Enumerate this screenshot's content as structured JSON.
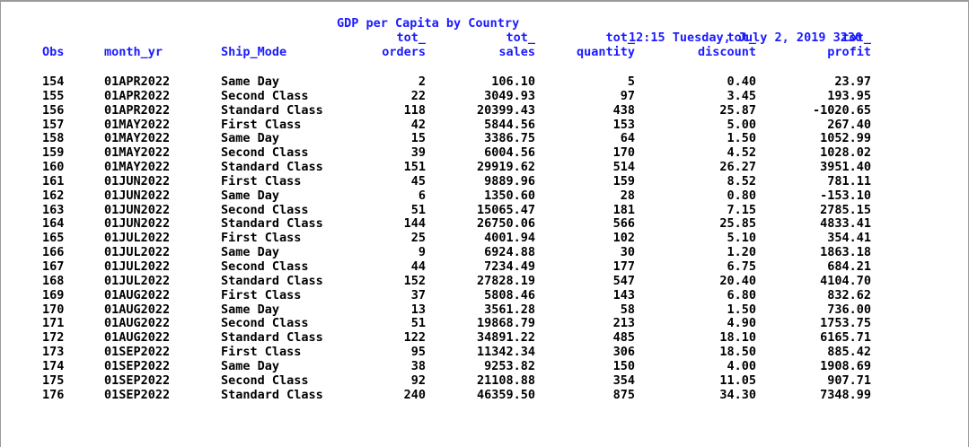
{
  "header": {
    "title": "GDP per Capita by Country",
    "timestamp": "12:15 Tuesday, July 2, 2019 3230"
  },
  "columns": {
    "obs": "Obs",
    "month_yr": "month_yr",
    "ship_mode": "Ship_Mode",
    "tot_orders": "tot_\norders",
    "tot_sales": "tot_\nsales",
    "tot_quantity": "tot_\nquantity",
    "tot_discount": "tot_\ndiscount",
    "tot_profit": "tot_\nprofit"
  },
  "rows": [
    {
      "obs": "154",
      "month_yr": "01APR2022",
      "ship_mode": "Same Day",
      "orders": "2",
      "sales": "106.10",
      "quantity": "5",
      "discount": "0.40",
      "profit": "23.97"
    },
    {
      "obs": "155",
      "month_yr": "01APR2022",
      "ship_mode": "Second Class",
      "orders": "22",
      "sales": "3049.93",
      "quantity": "97",
      "discount": "3.45",
      "profit": "193.95"
    },
    {
      "obs": "156",
      "month_yr": "01APR2022",
      "ship_mode": "Standard Class",
      "orders": "118",
      "sales": "20399.43",
      "quantity": "438",
      "discount": "25.87",
      "profit": "-1020.65"
    },
    {
      "obs": "157",
      "month_yr": "01MAY2022",
      "ship_mode": "First Class",
      "orders": "42",
      "sales": "5844.56",
      "quantity": "153",
      "discount": "5.00",
      "profit": "267.40"
    },
    {
      "obs": "158",
      "month_yr": "01MAY2022",
      "ship_mode": "Same Day",
      "orders": "15",
      "sales": "3386.75",
      "quantity": "64",
      "discount": "1.50",
      "profit": "1052.99"
    },
    {
      "obs": "159",
      "month_yr": "01MAY2022",
      "ship_mode": "Second Class",
      "orders": "39",
      "sales": "6004.56",
      "quantity": "170",
      "discount": "4.52",
      "profit": "1028.02"
    },
    {
      "obs": "160",
      "month_yr": "01MAY2022",
      "ship_mode": "Standard Class",
      "orders": "151",
      "sales": "29919.62",
      "quantity": "514",
      "discount": "26.27",
      "profit": "3951.40"
    },
    {
      "obs": "161",
      "month_yr": "01JUN2022",
      "ship_mode": "First Class",
      "orders": "45",
      "sales": "9889.96",
      "quantity": "159",
      "discount": "8.52",
      "profit": "781.11"
    },
    {
      "obs": "162",
      "month_yr": "01JUN2022",
      "ship_mode": "Same Day",
      "orders": "6",
      "sales": "1350.60",
      "quantity": "28",
      "discount": "0.80",
      "profit": "-153.10"
    },
    {
      "obs": "163",
      "month_yr": "01JUN2022",
      "ship_mode": "Second Class",
      "orders": "51",
      "sales": "15065.47",
      "quantity": "181",
      "discount": "7.15",
      "profit": "2785.15"
    },
    {
      "obs": "164",
      "month_yr": "01JUN2022",
      "ship_mode": "Standard Class",
      "orders": "144",
      "sales": "26750.06",
      "quantity": "566",
      "discount": "25.85",
      "profit": "4833.41"
    },
    {
      "obs": "165",
      "month_yr": "01JUL2022",
      "ship_mode": "First Class",
      "orders": "25",
      "sales": "4001.94",
      "quantity": "102",
      "discount": "5.10",
      "profit": "354.41"
    },
    {
      "obs": "166",
      "month_yr": "01JUL2022",
      "ship_mode": "Same Day",
      "orders": "9",
      "sales": "6924.88",
      "quantity": "30",
      "discount": "1.20",
      "profit": "1863.18"
    },
    {
      "obs": "167",
      "month_yr": "01JUL2022",
      "ship_mode": "Second Class",
      "orders": "44",
      "sales": "7234.49",
      "quantity": "177",
      "discount": "6.75",
      "profit": "684.21"
    },
    {
      "obs": "168",
      "month_yr": "01JUL2022",
      "ship_mode": "Standard Class",
      "orders": "152",
      "sales": "27828.19",
      "quantity": "547",
      "discount": "20.40",
      "profit": "4104.70"
    },
    {
      "obs": "169",
      "month_yr": "01AUG2022",
      "ship_mode": "First Class",
      "orders": "37",
      "sales": "5808.46",
      "quantity": "143",
      "discount": "6.80",
      "profit": "832.62"
    },
    {
      "obs": "170",
      "month_yr": "01AUG2022",
      "ship_mode": "Same Day",
      "orders": "13",
      "sales": "3561.28",
      "quantity": "58",
      "discount": "1.50",
      "profit": "736.00"
    },
    {
      "obs": "171",
      "month_yr": "01AUG2022",
      "ship_mode": "Second Class",
      "orders": "51",
      "sales": "19868.79",
      "quantity": "213",
      "discount": "4.90",
      "profit": "1753.75"
    },
    {
      "obs": "172",
      "month_yr": "01AUG2022",
      "ship_mode": "Standard Class",
      "orders": "122",
      "sales": "34891.22",
      "quantity": "485",
      "discount": "18.10",
      "profit": "6165.71"
    },
    {
      "obs": "173",
      "month_yr": "01SEP2022",
      "ship_mode": "First Class",
      "orders": "95",
      "sales": "11342.34",
      "quantity": "306",
      "discount": "18.50",
      "profit": "885.42"
    },
    {
      "obs": "174",
      "month_yr": "01SEP2022",
      "ship_mode": "Same Day",
      "orders": "38",
      "sales": "9253.82",
      "quantity": "150",
      "discount": "4.00",
      "profit": "1908.69"
    },
    {
      "obs": "175",
      "month_yr": "01SEP2022",
      "ship_mode": "Second Class",
      "orders": "92",
      "sales": "21108.88",
      "quantity": "354",
      "discount": "11.05",
      "profit": "907.71"
    },
    {
      "obs": "176",
      "month_yr": "01SEP2022",
      "ship_mode": "Standard Class",
      "orders": "240",
      "sales": "46359.50",
      "quantity": "875",
      "discount": "34.30",
      "profit": "7348.99"
    }
  ],
  "colors": {
    "header_text": "#1a1aff",
    "body_text": "#000000",
    "frame_border": "#9a9a9a"
  }
}
